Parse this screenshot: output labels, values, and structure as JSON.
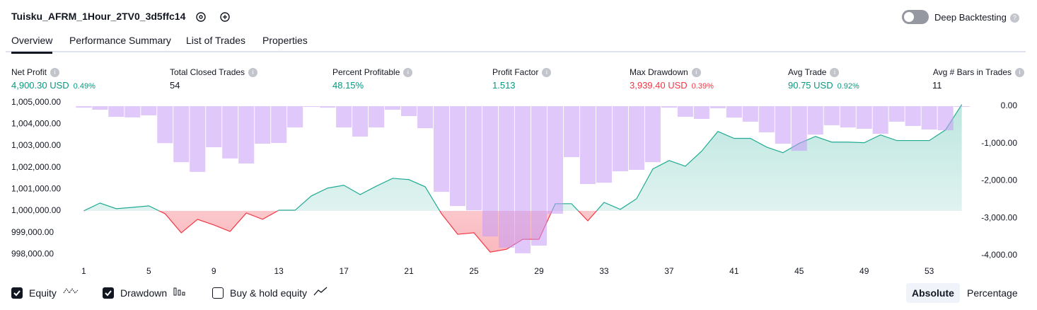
{
  "header": {
    "title": "Tuisku_AFRM_1Hour_2TV0_3d5ffc14",
    "toggle_label": "Deep Backtesting",
    "toggle_on": false
  },
  "tabs": [
    "Overview",
    "Performance Summary",
    "List of Trades",
    "Properties"
  ],
  "active_tab": 0,
  "stats": [
    {
      "label": "Net Profit",
      "value": "4,900.30 USD",
      "pct": "0.49%",
      "tone": "pos"
    },
    {
      "label": "Total Closed Trades",
      "value": "54",
      "tone": "neutral"
    },
    {
      "label": "Percent Profitable",
      "value": "48.15%",
      "tone": "pos"
    },
    {
      "label": "Profit Factor",
      "value": "1.513",
      "tone": "pos"
    },
    {
      "label": "Max Drawdown",
      "value": "3,939.40 USD",
      "pct": "0.39%",
      "tone": "neg"
    },
    {
      "label": "Avg Trade",
      "value": "90.75 USD",
      "pct": "0.92%",
      "tone": "pos"
    },
    {
      "label": "Avg # Bars in Trades",
      "value": "11",
      "tone": "neutral"
    }
  ],
  "chart_data": {
    "type": "line",
    "x": [
      1,
      2,
      3,
      4,
      5,
      6,
      7,
      8,
      9,
      10,
      11,
      12,
      13,
      14,
      15,
      16,
      17,
      18,
      19,
      20,
      21,
      22,
      23,
      24,
      25,
      26,
      27,
      28,
      29,
      30,
      31,
      32,
      33,
      34,
      35,
      36,
      37,
      38,
      39,
      40,
      41,
      42,
      43,
      44,
      45,
      46,
      47,
      48,
      49,
      50,
      51,
      52,
      53,
      54,
      55
    ],
    "xlim": [
      0.55,
      55.45
    ],
    "xticks": [
      1,
      5,
      9,
      13,
      17,
      21,
      25,
      29,
      33,
      37,
      41,
      45,
      49,
      53
    ],
    "ylim": [
      997650,
      1005150
    ],
    "yticks": [
      {
        "value": 998000,
        "label": "998,000.00"
      },
      {
        "value": 999000,
        "label": "999,000.00"
      },
      {
        "value": 1000000,
        "label": "1,000,000.00"
      },
      {
        "value": 1001000,
        "label": "1,001,000.00"
      },
      {
        "value": 1002000,
        "label": "1,002,000.00"
      },
      {
        "value": 1003000,
        "label": "1,003,000.00"
      },
      {
        "value": 1004000,
        "label": "1,004,000.00"
      },
      {
        "value": 1005000,
        "label": "1,005,000.00"
      }
    ],
    "y2lim": [
      -4170,
      190
    ],
    "y2ticks": [
      {
        "value": 0,
        "label": "0.00"
      },
      {
        "value": -1000,
        "label": "-1,000.00"
      },
      {
        "value": -2000,
        "label": "-2,000.00"
      },
      {
        "value": -3000,
        "label": "-3,000.00"
      },
      {
        "value": -4000,
        "label": "-4,000.00"
      }
    ],
    "series": [
      {
        "name": "Equity",
        "color": "#22ab94",
        "checked": true,
        "values": [
          1000000,
          1000360,
          1000100,
          1000160,
          1000230,
          999870,
          998990,
          999610,
          999350,
          999050,
          999900,
          999610,
          1000030,
          1000030,
          1000690,
          1001050,
          1001180,
          1000750,
          1001140,
          1001500,
          1001440,
          1001110,
          999870,
          998920,
          998990,
          998100,
          998230,
          998690,
          998690,
          1000330,
          1000330,
          999540,
          1000390,
          1000070,
          1000560,
          1001930,
          1002320,
          1002060,
          1002750,
          1003660,
          1003340,
          1003340,
          1002940,
          1002680,
          1003110,
          1003430,
          1003170,
          1003170,
          1003140,
          1003500,
          1003240,
          1003240,
          1003240,
          1003730,
          1004900
        ]
      },
      {
        "name": "Drawdown",
        "color": "#c79bf7",
        "type": "bar",
        "axis": "y2",
        "checked": true,
        "values": [
          -40,
          -95,
          -285,
          -300,
          -245,
          -990,
          -1500,
          -1760,
          -1100,
          -1400,
          -1535,
          -1005,
          -985,
          -570,
          0,
          -40,
          -570,
          -815,
          -570,
          -95,
          -265,
          -590,
          -2295,
          -2675,
          -2790,
          -3490,
          -3790,
          -3939.4,
          -3735,
          -2880,
          -1365,
          -2085,
          -2050,
          -1745,
          -1705,
          -1500,
          -40,
          -285,
          -340,
          -55,
          -305,
          -415,
          -700,
          -1005,
          -1195,
          -760,
          -510,
          -570,
          -605,
          -740,
          -415,
          -530,
          -625,
          -645,
          0
        ]
      }
    ],
    "negative_color": "#f23645"
  },
  "extra_legend": {
    "label": "Buy & hold equity",
    "checked": false
  },
  "modes": [
    "Absolute",
    "Percentage"
  ],
  "active_mode": 0
}
